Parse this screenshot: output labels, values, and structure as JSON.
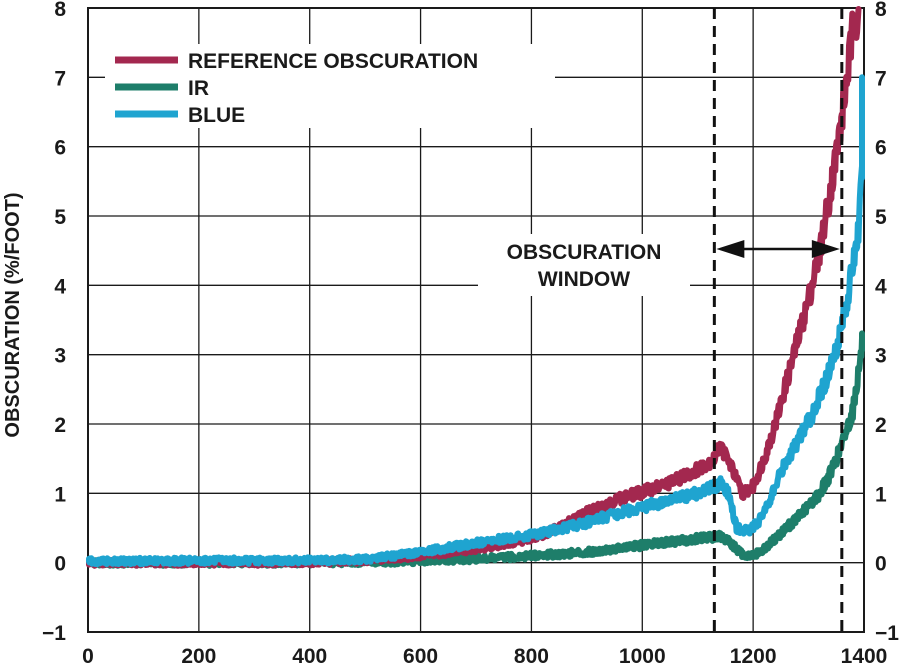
{
  "chart_data": {
    "type": "line",
    "ylabel": "OBSCURATION (%/FOOT)",
    "xlabel": "",
    "xlim": [
      0,
      1400
    ],
    "ylim": [
      -1,
      8
    ],
    "x_ticks": [
      0,
      200,
      400,
      600,
      800,
      1000,
      1200,
      1400
    ],
    "y_ticks": [
      -1,
      0,
      1,
      2,
      3,
      4,
      5,
      6,
      7,
      8
    ],
    "y_tick_labels": [
      "−1",
      "0",
      "1",
      "2",
      "3",
      "4",
      "5",
      "6",
      "7",
      "8"
    ],
    "grid": true,
    "legend_position": "top-left",
    "series": [
      {
        "name": "REFERENCE OBSCURATION",
        "color": "#a3284f",
        "points": [
          [
            0,
            0
          ],
          [
            200,
            0
          ],
          [
            400,
            0
          ],
          [
            500,
            0.03
          ],
          [
            600,
            0.1
          ],
          [
            700,
            0.2
          ],
          [
            800,
            0.35
          ],
          [
            850,
            0.5
          ],
          [
            900,
            0.72
          ],
          [
            950,
            0.9
          ],
          [
            1000,
            1.02
          ],
          [
            1050,
            1.15
          ],
          [
            1100,
            1.35
          ],
          [
            1130,
            1.5
          ],
          [
            1140,
            1.7
          ],
          [
            1160,
            1.4
          ],
          [
            1180,
            1.0
          ],
          [
            1200,
            1.1
          ],
          [
            1220,
            1.5
          ],
          [
            1240,
            2.0
          ],
          [
            1260,
            2.6
          ],
          [
            1280,
            3.2
          ],
          [
            1300,
            3.8
          ],
          [
            1320,
            4.5
          ],
          [
            1340,
            5.4
          ],
          [
            1360,
            6.4
          ],
          [
            1380,
            7.7
          ],
          [
            1390,
            8.0
          ]
        ]
      },
      {
        "name": "IR",
        "color": "#1e7e6a",
        "points": [
          [
            0,
            0
          ],
          [
            200,
            0
          ],
          [
            400,
            0
          ],
          [
            600,
            0.02
          ],
          [
            700,
            0.05
          ],
          [
            800,
            0.1
          ],
          [
            900,
            0.15
          ],
          [
            1000,
            0.25
          ],
          [
            1100,
            0.35
          ],
          [
            1140,
            0.38
          ],
          [
            1160,
            0.28
          ],
          [
            1180,
            0.12
          ],
          [
            1200,
            0.1
          ],
          [
            1220,
            0.2
          ],
          [
            1240,
            0.35
          ],
          [
            1260,
            0.5
          ],
          [
            1280,
            0.65
          ],
          [
            1300,
            0.82
          ],
          [
            1320,
            1.0
          ],
          [
            1340,
            1.3
          ],
          [
            1360,
            1.7
          ],
          [
            1380,
            2.2
          ],
          [
            1400,
            3.3
          ]
        ]
      },
      {
        "name": "BLUE",
        "color": "#1fa4d0",
        "points": [
          [
            0,
            0.02
          ],
          [
            200,
            0.03
          ],
          [
            400,
            0.03
          ],
          [
            500,
            0.05
          ],
          [
            600,
            0.15
          ],
          [
            700,
            0.28
          ],
          [
            800,
            0.4
          ],
          [
            850,
            0.48
          ],
          [
            900,
            0.58
          ],
          [
            950,
            0.7
          ],
          [
            1000,
            0.8
          ],
          [
            1050,
            0.9
          ],
          [
            1100,
            1.0
          ],
          [
            1130,
            1.1
          ],
          [
            1140,
            1.15
          ],
          [
            1155,
            1.0
          ],
          [
            1170,
            0.5
          ],
          [
            1190,
            0.45
          ],
          [
            1210,
            0.6
          ],
          [
            1230,
            0.9
          ],
          [
            1250,
            1.3
          ],
          [
            1270,
            1.6
          ],
          [
            1290,
            1.9
          ],
          [
            1310,
            2.2
          ],
          [
            1330,
            2.6
          ],
          [
            1350,
            3.1
          ],
          [
            1370,
            3.8
          ],
          [
            1390,
            4.8
          ],
          [
            1400,
            6.0
          ],
          [
            1405,
            7.0
          ]
        ]
      }
    ],
    "annotation": {
      "line1": "OBSCURATION",
      "line2": "WINDOW",
      "x_start": 1130,
      "x_end": 1360
    }
  }
}
